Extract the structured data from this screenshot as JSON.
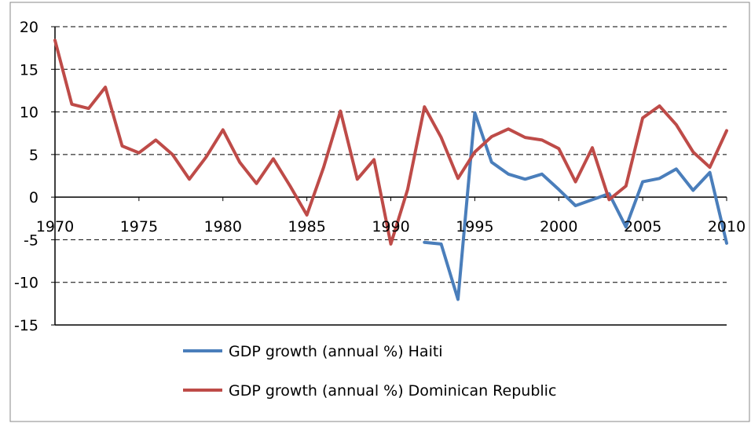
{
  "chart_data": {
    "type": "line",
    "title": "",
    "xlabel": "",
    "ylabel": "",
    "xlim": [
      1970,
      2010
    ],
    "ylim": [
      -15,
      20
    ],
    "x_ticks": [
      1970,
      1975,
      1980,
      1985,
      1990,
      1995,
      2000,
      2005,
      2010
    ],
    "y_ticks": [
      20,
      15,
      10,
      5,
      0,
      -5,
      -10,
      -15
    ],
    "x_tick_labels": [
      "1970",
      "1975",
      "1980",
      "1985",
      "1990",
      "1995",
      "2000",
      "2005",
      "2010"
    ],
    "y_tick_labels": [
      "20",
      "15",
      "10",
      "5",
      "0",
      "-5",
      "-10",
      "-15"
    ],
    "grid": "horizontal dashed",
    "legend_position": "bottom",
    "series": [
      {
        "name": "GDP growth (annual %) Haiti",
        "color": "#4a7ebb",
        "x": [
          1992,
          1993,
          1994,
          1995,
          1996,
          1997,
          1998,
          1999,
          2000,
          2001,
          2002,
          2003,
          2004,
          2005,
          2006,
          2007,
          2008,
          2009,
          2010
        ],
        "y": [
          -5.3,
          -5.5,
          -12.0,
          9.9,
          4.1,
          2.7,
          2.1,
          2.7,
          0.9,
          -1.0,
          -0.3,
          0.4,
          -3.5,
          1.8,
          2.2,
          3.3,
          0.8,
          2.9,
          -5.4
        ]
      },
      {
        "name": "GDP growth (annual %) Dominican Republic",
        "color": "#be4b48",
        "x": [
          1970,
          1971,
          1972,
          1973,
          1974,
          1975,
          1976,
          1977,
          1978,
          1979,
          1980,
          1981,
          1982,
          1983,
          1984,
          1985,
          1986,
          1987,
          1988,
          1989,
          1990,
          1991,
          1992,
          1993,
          1994,
          1995,
          1996,
          1997,
          1998,
          1999,
          2000,
          2001,
          2002,
          2003,
          2004,
          2005,
          2006,
          2007,
          2008,
          2009,
          2010
        ],
        "y": [
          18.4,
          10.9,
          10.4,
          12.9,
          6.0,
          5.2,
          6.7,
          5.0,
          2.1,
          4.7,
          7.9,
          4.1,
          1.6,
          4.5,
          1.3,
          -2.1,
          3.5,
          10.1,
          2.1,
          4.4,
          -5.5,
          0.9,
          10.6,
          7.0,
          2.2,
          5.3,
          7.1,
          8.0,
          7.0,
          6.7,
          5.7,
          1.8,
          5.8,
          -0.3,
          1.3,
          9.3,
          10.7,
          8.5,
          5.3,
          3.5,
          7.8
        ]
      }
    ]
  }
}
